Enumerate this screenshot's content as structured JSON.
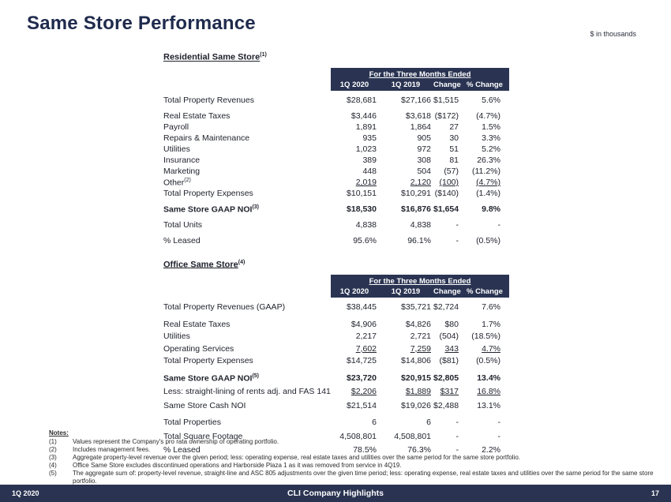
{
  "slide": {
    "title": "Same Store Performance",
    "units_note": "$ in thousands"
  },
  "tables": [
    {
      "section_title": "Residential Same Store",
      "section_sup": "(1)",
      "header": {
        "span": "For the Three Months Ended",
        "columns": [
          "1Q 2020",
          "1Q 2019",
          "Change",
          "% Change"
        ]
      },
      "rows": [
        {
          "label": "Total Property Revenues",
          "sup": "",
          "bold": false,
          "underline": false,
          "sp": "",
          "v": [
            "$28,681",
            "$27,166",
            "$1,515",
            "5.6%"
          ]
        },
        {
          "label": "Real Estate Taxes",
          "sup": "",
          "bold": false,
          "underline": false,
          "sp": "g5",
          "v": [
            "$3,446",
            "$3,618",
            "($172)",
            "(4.7%)"
          ]
        },
        {
          "label": "Payroll",
          "sup": "",
          "bold": false,
          "underline": false,
          "sp": "",
          "v": [
            "1,891",
            "1,864",
            "27",
            "1.5%"
          ]
        },
        {
          "label": "Repairs & Maintenance",
          "sup": "",
          "bold": false,
          "underline": false,
          "sp": "",
          "v": [
            "935",
            "905",
            "30",
            "3.3%"
          ]
        },
        {
          "label": "Utilities",
          "sup": "",
          "bold": false,
          "underline": false,
          "sp": "",
          "v": [
            "1,023",
            "972",
            "51",
            "5.2%"
          ]
        },
        {
          "label": "Insurance",
          "sup": "",
          "bold": false,
          "underline": false,
          "sp": "",
          "v": [
            "389",
            "308",
            "81",
            "26.3%"
          ]
        },
        {
          "label": "Marketing",
          "sup": "",
          "bold": false,
          "underline": false,
          "sp": "",
          "v": [
            "448",
            "504",
            "(57)",
            "(11.2%)"
          ]
        },
        {
          "label": "Other",
          "sup": "(2)",
          "bold": false,
          "underline": true,
          "sp": "",
          "v": [
            "2,019",
            "2,120",
            "(100)",
            "(4.7%)"
          ]
        },
        {
          "label": "Total Property Expenses",
          "sup": "",
          "bold": false,
          "underline": false,
          "sp": "",
          "v": [
            "$10,151",
            "$10,291",
            "($140)",
            "(1.4%)"
          ]
        },
        {
          "label": "Same Store GAAP NOI",
          "sup": "(3)",
          "bold": true,
          "underline": false,
          "sp": "g5",
          "v": [
            "$18,530",
            "$16,876",
            "$1,654",
            "9.8%"
          ]
        },
        {
          "label": "Total Units",
          "sup": "",
          "bold": false,
          "underline": false,
          "sp": "g5",
          "v": [
            "4,838",
            "4,838",
            "-",
            "-"
          ]
        },
        {
          "label": "% Leased",
          "sup": "",
          "bold": false,
          "underline": false,
          "sp": "g5",
          "v": [
            "95.6%",
            "96.1%",
            "-",
            "(0.5%)"
          ]
        }
      ]
    },
    {
      "section_title": "Office Same Store",
      "section_sup": "(4)",
      "header": {
        "span": "For the Three Months Ended",
        "columns": [
          "1Q 2020",
          "1Q 2019",
          "Change",
          "% Change"
        ]
      },
      "rows": [
        {
          "label": "Total Property Revenues (GAAP)",
          "sup": "",
          "bold": false,
          "underline": false,
          "sp": "",
          "v": [
            "$38,445",
            "$35,721",
            "$2,724",
            "7.6%"
          ]
        },
        {
          "label": "Real Estate Taxes",
          "sup": "",
          "bold": false,
          "underline": false,
          "sp": "g5",
          "v": [
            "$4,906",
            "$4,826",
            "$80",
            "1.7%"
          ]
        },
        {
          "label": "Utilities",
          "sup": "",
          "bold": false,
          "underline": false,
          "sp": "",
          "v": [
            "2,217",
            "2,721",
            "(504)",
            "(18.5%)"
          ]
        },
        {
          "label": "Operating Services",
          "sup": "",
          "bold": false,
          "underline": true,
          "sp": "",
          "v": [
            "7,602",
            "7,259",
            "343",
            "4.7%"
          ]
        },
        {
          "label": "Total Property Expenses",
          "sup": "",
          "bold": false,
          "underline": false,
          "sp": "",
          "v": [
            "$14,725",
            "$14,806",
            "($81)",
            "(0.5%)"
          ]
        },
        {
          "label": "Same Store GAAP NOI",
          "sup": "(5)",
          "bold": true,
          "underline": false,
          "sp": "g5",
          "v": [
            "$23,720",
            "$20,915",
            "$2,805",
            "13.4%"
          ]
        },
        {
          "label": "Less: straight-lining of rents adj. and FAS 141",
          "sup": "",
          "bold": false,
          "underline": true,
          "sp": "g3",
          "v": [
            "$2,206",
            "$1,889",
            "$317",
            "16.8%"
          ]
        },
        {
          "label": "Same Store Cash NOI",
          "sup": "",
          "bold": false,
          "underline": false,
          "sp": "g3",
          "v": [
            "$21,514",
            "$19,026",
            "$2,488",
            "13.1%"
          ]
        },
        {
          "label": "Total Properties",
          "sup": "",
          "bold": false,
          "underline": false,
          "sp": "g5",
          "v": [
            "6",
            "6",
            "-",
            "-"
          ]
        },
        {
          "label": "Total Square Footage",
          "sup": "",
          "bold": false,
          "underline": false,
          "sp": "g3",
          "v": [
            "4,508,801",
            "4,508,801",
            "-",
            "-"
          ]
        },
        {
          "label": "% Leased",
          "sup": "",
          "bold": false,
          "underline": false,
          "sp": "g3",
          "v": [
            "78.5%",
            "76.3%",
            "-",
            "2.2%"
          ]
        }
      ]
    }
  ],
  "notes": {
    "heading": "Notes:",
    "items": [
      {
        "num": "(1)",
        "text": "Values represent the Company's pro rata ownership of operating portfolio."
      },
      {
        "num": "(2)",
        "text": "Includes management fees."
      },
      {
        "num": "(3)",
        "text": "Aggregate property-level revenue over the given period; less: operating expense, real estate taxes and utilities over the same period for the same store portfolio."
      },
      {
        "num": "(4)",
        "text": "Office Same Store excludes discontinued operations and Harborside Plaza 1 as it was removed from service in 4Q19."
      },
      {
        "num": "(5)",
        "text": "The aggregate sum of: property-level revenue, straight-line and ASC 805 adjustments over the given time period; less: operating expense, real estate taxes and utilities over the same period for the same store portfolio."
      }
    ]
  },
  "footer": {
    "left": "1Q 2020",
    "center": "CLI Company Highlights",
    "page": "17"
  },
  "colors": {
    "navy": "#2a3452",
    "title_navy": "#1f2b4d"
  }
}
